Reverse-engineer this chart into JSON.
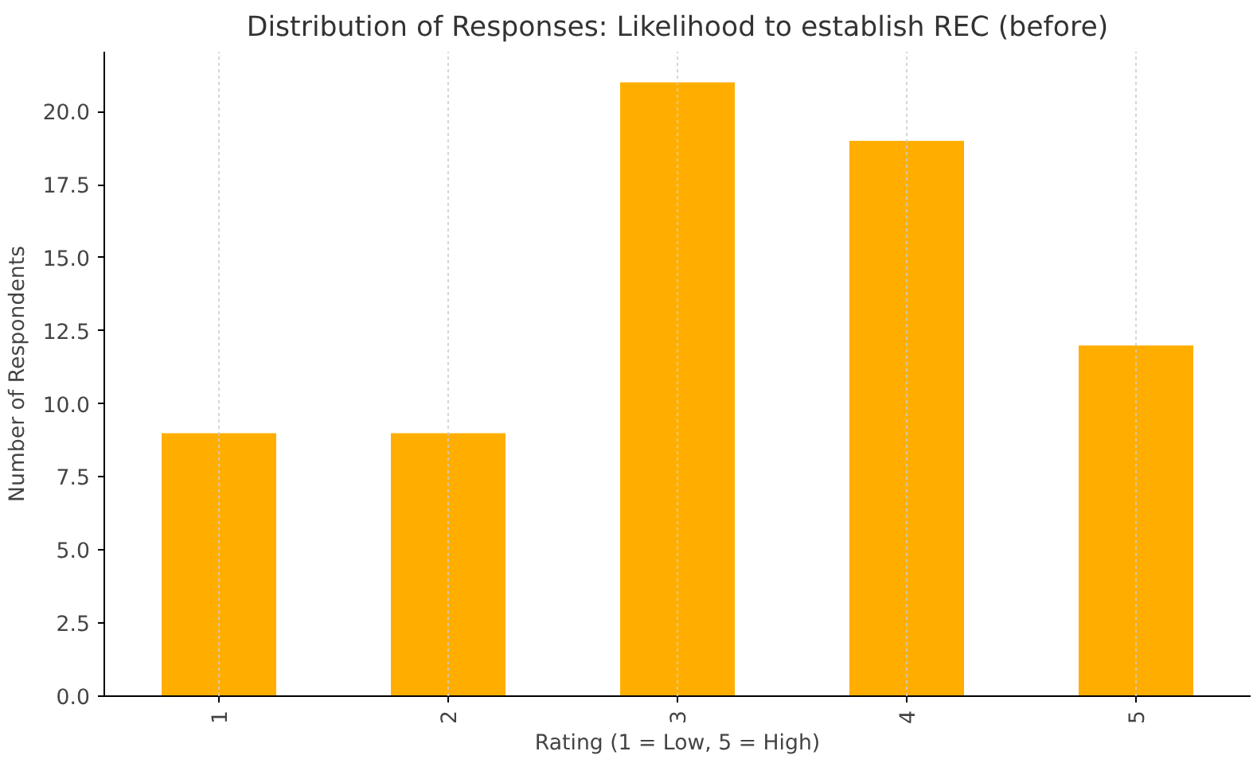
{
  "chart_data": {
    "type": "bar",
    "title": "Distribution of Responses: Likelihood to establish REC (before)",
    "xlabel": "Rating (1 = Low, 5 = High)",
    "ylabel": "Number of Respondents",
    "categories": [
      "1",
      "2",
      "3",
      "4",
      "5"
    ],
    "values": [
      9,
      9,
      21,
      19,
      12
    ],
    "color": "#ffae00",
    "ylim": [
      0,
      22.05
    ],
    "yticks": [
      {
        "value": 0,
        "label": "0.0"
      },
      {
        "value": 2.5,
        "label": "2.5"
      },
      {
        "value": 5,
        "label": "5.0"
      },
      {
        "value": 7.5,
        "label": "7.5"
      },
      {
        "value": 10,
        "label": "10.0"
      },
      {
        "value": 12.5,
        "label": "12.5"
      },
      {
        "value": 15,
        "label": "15.0"
      },
      {
        "value": 17.5,
        "label": "17.5"
      },
      {
        "value": 20,
        "label": "20.0"
      }
    ],
    "grid": "x"
  }
}
